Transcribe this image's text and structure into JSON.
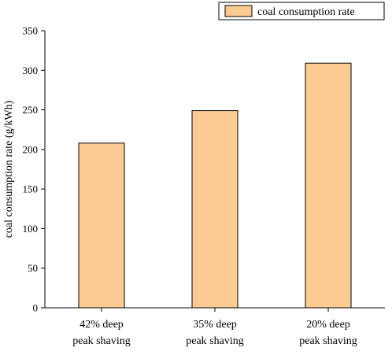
{
  "chart_data": {
    "type": "bar",
    "title": "",
    "xlabel": "",
    "ylabel": "coal consumption rate (g/kWh)",
    "categories": [
      [
        "42% deep",
        "peak shaving"
      ],
      [
        "35% deep",
        "peak shaving"
      ],
      [
        "20% deep",
        "peak shaving"
      ]
    ],
    "series": [
      {
        "name": "coal consumption rate",
        "values": [
          208,
          249,
          309
        ]
      }
    ],
    "ylim": [
      0,
      350
    ],
    "yticks": [
      "0",
      "50",
      "100",
      "150",
      "200",
      "250",
      "300",
      "350"
    ],
    "grid": false,
    "legend": "top-right",
    "colors": {
      "bar_fill": "#FCCB94",
      "bar_stroke": "#000000",
      "axis": "#000000"
    }
  }
}
